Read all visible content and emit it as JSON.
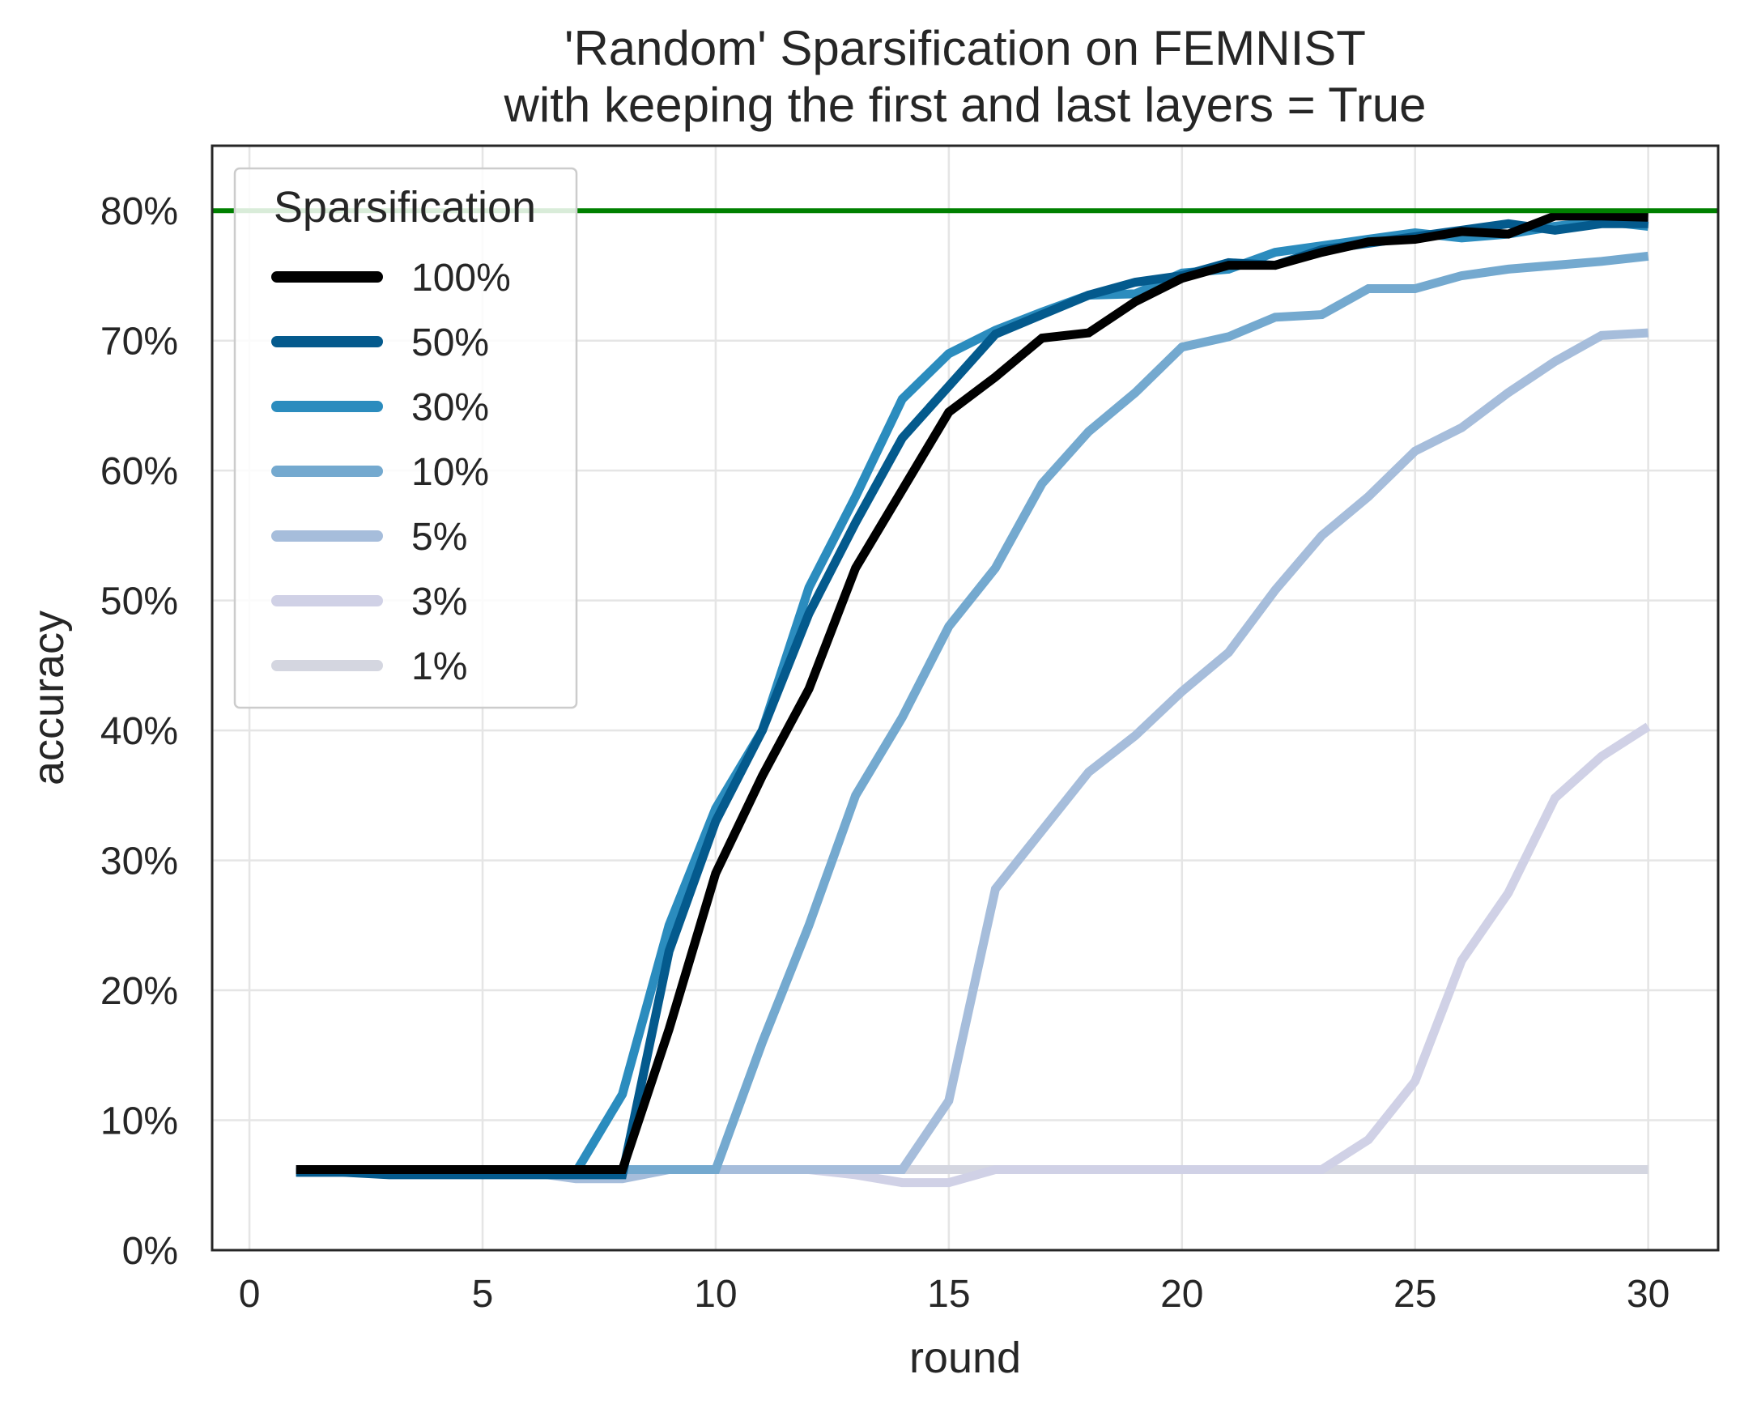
{
  "chart_data": {
    "type": "line",
    "title": [
      "'Random' Sparsification on FEMNIST",
      "with keeping the first and last layers = True"
    ],
    "xlabel": "round",
    "ylabel": "accuracy",
    "xlim": [
      -0.8,
      31.5
    ],
    "ylim": [
      0,
      0.85
    ],
    "xticks": [
      0,
      5,
      10,
      15,
      20,
      25,
      30
    ],
    "xtick_labels": [
      "0",
      "5",
      "10",
      "15",
      "20",
      "25",
      "30"
    ],
    "yticks": [
      0,
      0.1,
      0.2,
      0.3,
      0.4,
      0.5,
      0.6,
      0.7,
      0.8
    ],
    "ytick_labels": [
      "0%",
      "10%",
      "20%",
      "30%",
      "40%",
      "50%",
      "60%",
      "70%",
      "80%"
    ],
    "grid": true,
    "legend": {
      "title": "Sparsification",
      "placement": "upper-left"
    },
    "reference_line": {
      "y": 0.8,
      "color": "#008000"
    },
    "x": [
      1,
      2,
      3,
      4,
      5,
      6,
      7,
      8,
      9,
      10,
      11,
      12,
      13,
      14,
      15,
      16,
      17,
      18,
      19,
      20,
      21,
      22,
      23,
      24,
      25,
      26,
      27,
      28,
      29,
      30
    ],
    "series": [
      {
        "name": "100%",
        "color": "#000000",
        "values": [
          0.062,
          0.062,
          0.062,
          0.062,
          0.062,
          0.062,
          0.062,
          0.062,
          0.17,
          0.29,
          0.365,
          0.432,
          0.525,
          0.585,
          0.645,
          0.672,
          0.702,
          0.706,
          0.73,
          0.748,
          0.758,
          0.758,
          0.768,
          0.776,
          0.778,
          0.784,
          0.782,
          0.796,
          0.796,
          0.795
        ]
      },
      {
        "name": "50%",
        "color": "#045a8d",
        "values": [
          0.06,
          0.06,
          0.058,
          0.058,
          0.058,
          0.058,
          0.058,
          0.058,
          0.23,
          0.33,
          0.4,
          0.49,
          0.56,
          0.625,
          0.665,
          0.705,
          0.72,
          0.735,
          0.745,
          0.75,
          0.76,
          0.758,
          0.77,
          0.775,
          0.78,
          0.785,
          0.79,
          0.785,
          0.79,
          0.79
        ]
      },
      {
        "name": "30%",
        "color": "#2b8cbe",
        "values": [
          0.06,
          0.06,
          0.06,
          0.06,
          0.06,
          0.06,
          0.06,
          0.12,
          0.25,
          0.34,
          0.4,
          0.51,
          0.58,
          0.655,
          0.69,
          0.708,
          0.722,
          0.735,
          0.736,
          0.752,
          0.755,
          0.768,
          0.773,
          0.778,
          0.783,
          0.779,
          0.782,
          0.788,
          0.792,
          0.788
        ]
      },
      {
        "name": "10%",
        "color": "#74a9cf",
        "values": [
          0.062,
          0.062,
          0.062,
          0.062,
          0.062,
          0.062,
          0.062,
          0.062,
          0.062,
          0.062,
          0.16,
          0.25,
          0.35,
          0.41,
          0.48,
          0.525,
          0.59,
          0.63,
          0.66,
          0.695,
          0.703,
          0.718,
          0.72,
          0.74,
          0.74,
          0.75,
          0.755,
          0.758,
          0.761,
          0.765
        ]
      },
      {
        "name": "5%",
        "color": "#a6bddb",
        "values": [
          0.06,
          0.06,
          0.06,
          0.06,
          0.06,
          0.06,
          0.055,
          0.055,
          0.062,
          0.062,
          0.062,
          0.062,
          0.062,
          0.062,
          0.115,
          0.278,
          0.323,
          0.368,
          0.396,
          0.43,
          0.46,
          0.508,
          0.55,
          0.58,
          0.615,
          0.633,
          0.66,
          0.684,
          0.704,
          0.706
        ]
      },
      {
        "name": "3%",
        "color": "#d0d1e6",
        "values": [
          0.062,
          0.062,
          0.062,
          0.062,
          0.062,
          0.062,
          0.062,
          0.062,
          0.062,
          0.062,
          0.062,
          0.062,
          0.058,
          0.052,
          0.052,
          0.062,
          0.062,
          0.062,
          0.062,
          0.062,
          0.062,
          0.062,
          0.062,
          0.085,
          0.13,
          0.223,
          0.275,
          0.348,
          0.38,
          0.403
        ]
      },
      {
        "name": "1%",
        "color": "#d4d6e0",
        "values": [
          0.062,
          0.062,
          0.062,
          0.062,
          0.062,
          0.062,
          0.062,
          0.062,
          0.062,
          0.062,
          0.062,
          0.062,
          0.062,
          0.062,
          0.062,
          0.062,
          0.062,
          0.062,
          0.062,
          0.062,
          0.062,
          0.062,
          0.062,
          0.062,
          0.062,
          0.062,
          0.062,
          0.062,
          0.062,
          0.062
        ]
      }
    ]
  }
}
